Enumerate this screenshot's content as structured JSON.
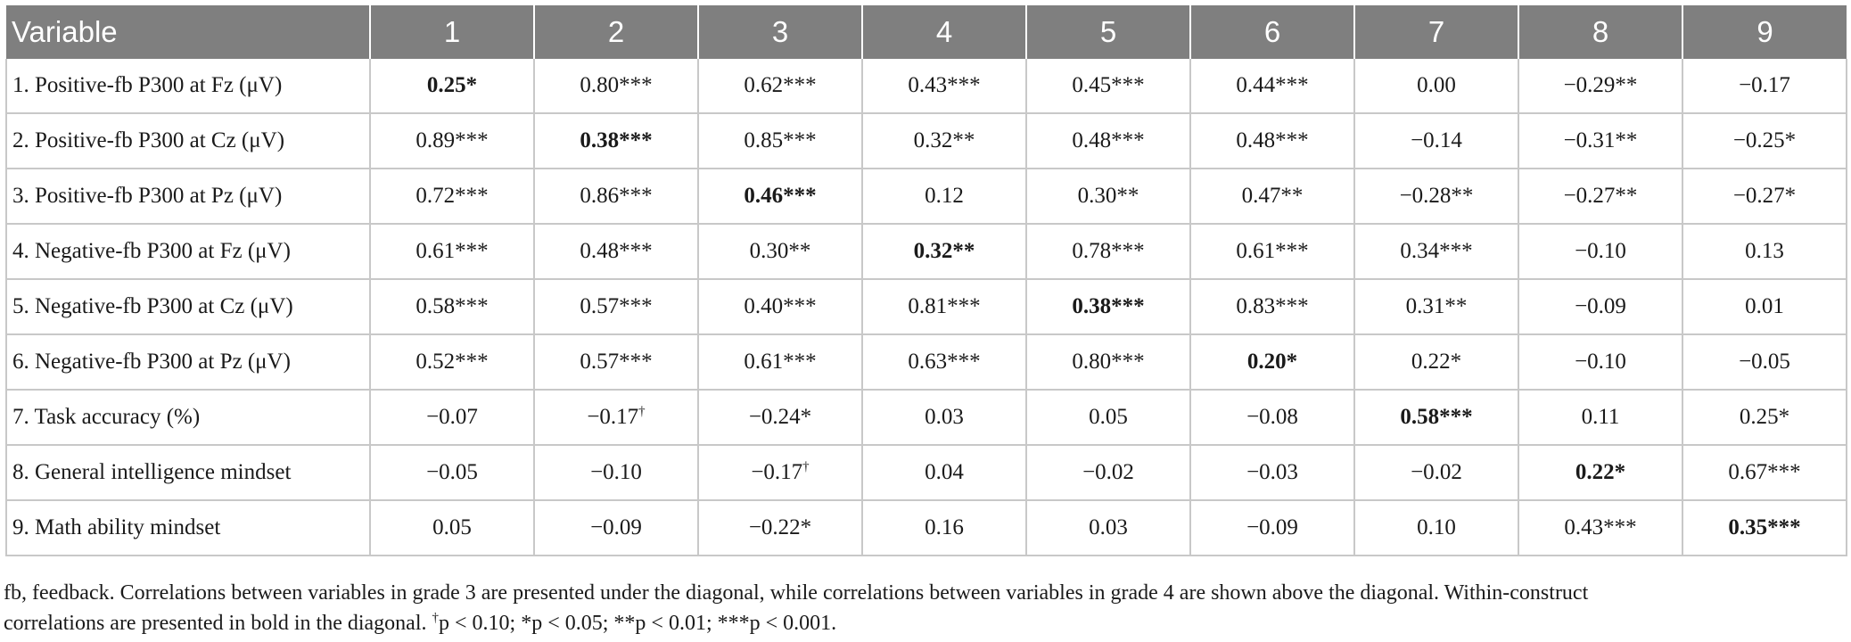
{
  "table": {
    "header": {
      "variable": "Variable",
      "columns": [
        "1",
        "2",
        "3",
        "4",
        "5",
        "6",
        "7",
        "8",
        "9"
      ]
    },
    "rows": [
      {
        "label": "1. Positive-fb P300 at Fz (μV)",
        "cells": [
          "0.25*",
          "0.80***",
          "0.62***",
          "0.43***",
          "0.45***",
          "0.44***",
          "0.00",
          "−0.29**",
          "−0.17"
        ]
      },
      {
        "label": "2. Positive-fb P300 at Cz (μV)",
        "cells": [
          "0.89***",
          "0.38***",
          "0.85***",
          "0.32**",
          "0.48***",
          "0.48***",
          "−0.14",
          "−0.31**",
          "−0.25*"
        ]
      },
      {
        "label": "3. Positive-fb P300 at Pz (μV)",
        "cells": [
          "0.72***",
          "0.86***",
          "0.46***",
          "0.12",
          "0.30**",
          "0.47**",
          "−0.28**",
          "−0.27**",
          "−0.27*"
        ]
      },
      {
        "label": "4. Negative-fb P300 at Fz (μV)",
        "cells": [
          "0.61***",
          "0.48***",
          "0.30**",
          "0.32**",
          "0.78***",
          "0.61***",
          "0.34***",
          "−0.10",
          "0.13"
        ]
      },
      {
        "label": "5. Negative-fb P300 at Cz (μV)",
        "cells": [
          "0.58***",
          "0.57***",
          "0.40***",
          "0.81***",
          "0.38***",
          "0.83***",
          "0.31**",
          "−0.09",
          "0.01"
        ]
      },
      {
        "label": "6. Negative-fb P300 at Pz (μV)",
        "cells": [
          "0.52***",
          "0.57***",
          "0.61***",
          "0.63***",
          "0.80***",
          "0.20*",
          "0.22*",
          "−0.10",
          "−0.05"
        ]
      },
      {
        "label": "7. Task accuracy (%)",
        "cells": [
          "−0.07",
          "−0.17",
          "−0.24*",
          "0.03",
          "0.05",
          "−0.08",
          "0.58***",
          "0.11",
          "0.25*"
        ]
      },
      {
        "label": "8. General intelligence mindset",
        "cells": [
          "−0.05",
          "−0.10",
          "−0.17",
          "0.04",
          "−0.02",
          "−0.03",
          "−0.02",
          "0.22*",
          "0.67***"
        ]
      },
      {
        "label": "9. Math ability mindset",
        "cells": [
          "0.05",
          "−0.09",
          "−0.22*",
          "0.16",
          "0.03",
          "−0.09",
          "0.10",
          "0.43***",
          "0.35***"
        ]
      }
    ],
    "dagger": "†"
  },
  "footnote": {
    "line1": "fb, feedback. Correlations between variables in grade 3 are presented under the diagonal, while correlations between variables in grade 4 are shown above the diagonal. Within-construct",
    "line2_text": "correlations are presented in bold in the diagonal. ",
    "dagger": "†",
    "sig1": "p < 0.10; *p < 0.05; **p < 0.01; ***p < 0.001."
  }
}
